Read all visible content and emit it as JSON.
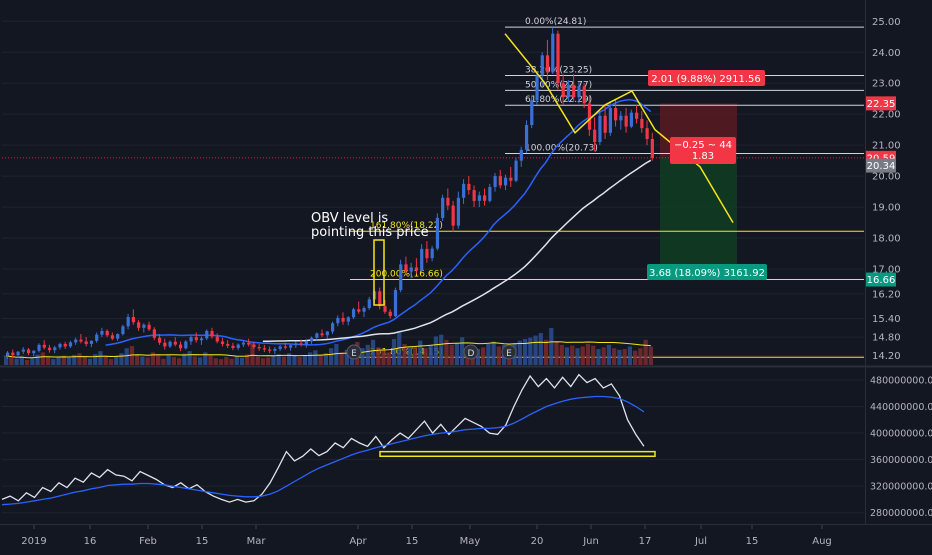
{
  "chart_data": [
    {
      "type": "candlestick",
      "panel": "price",
      "title": "",
      "xlabel": "",
      "ylabel": "",
      "y_ticks": [
        25.0,
        24.0,
        23.0,
        22.0,
        21.0,
        20.0,
        19.0,
        18.0,
        17.0,
        16.2,
        15.4,
        14.8,
        14.2
      ],
      "y_tick_labels": [
        "25.00",
        "24.00",
        "23.00",
        "22.00",
        "21.00",
        "20.00",
        "19.00",
        "18.00",
        "17.00",
        "16.20",
        "15.40",
        "14.80",
        "14.20"
      ],
      "ylim": [
        13.9,
        25.3
      ],
      "last_price": "20.34",
      "price_tags": [
        {
          "value": 22.35,
          "label": "22.35",
          "color": "#f23645"
        },
        {
          "value": 20.59,
          "label": "20.59",
          "color": "#f23645"
        },
        {
          "value": 20.34,
          "label": "20.34",
          "color": "#787b86"
        },
        {
          "value": 16.66,
          "label": "16.66",
          "color": "#089981"
        }
      ],
      "fib_levels": [
        {
          "label": "0.00%(24.81)",
          "value": 24.81
        },
        {
          "label": "38.20%(23.25)",
          "value": 23.25
        },
        {
          "label": "50.00%(22.77)",
          "value": 22.77
        },
        {
          "label": "61.80%(22.29)",
          "value": 22.29
        },
        {
          "label": "100.00%(20.73)",
          "value": 20.73
        },
        {
          "label": "161.80%(18.22)",
          "value": 18.22
        },
        {
          "label": "200.00%(16.66)",
          "value": 16.66
        },
        {
          "label": "261.80%(14.15)",
          "value": 14.15
        }
      ],
      "position": {
        "entry": 20.59,
        "stop": 22.35,
        "target": 16.66,
        "stop_label": "2.01 (9.88%) 2911.56",
        "target_label": "3.68 (18.09%) 3161.92",
        "center_label_1": "−0.25 ~ 44",
        "center_label_2": "1.83"
      },
      "annotation": "OBV level is pointing this price",
      "event_markers": [
        "E",
        "D",
        "E"
      ],
      "series": [
        {
          "name": "",
          "color": "#2962ff",
          "kind": "moving average"
        },
        {
          "name": "",
          "color": "#e0e3eb",
          "kind": "moving average"
        },
        {
          "name": "",
          "color": "#f5e51b",
          "kind": "volume moving average"
        }
      ],
      "candles": [
        [
          14.2,
          14.35,
          14.1,
          14.3
        ],
        [
          14.3,
          14.4,
          14.15,
          14.22
        ],
        [
          14.22,
          14.35,
          14.12,
          14.33
        ],
        [
          14.33,
          14.48,
          14.25,
          14.4
        ],
        [
          14.4,
          14.45,
          14.22,
          14.28
        ],
        [
          14.28,
          14.38,
          14.18,
          14.36
        ],
        [
          14.36,
          14.6,
          14.3,
          14.55
        ],
        [
          14.55,
          14.7,
          14.4,
          14.46
        ],
        [
          14.46,
          14.55,
          14.3,
          14.38
        ],
        [
          14.38,
          14.52,
          14.28,
          14.47
        ],
        [
          14.47,
          14.62,
          14.4,
          14.58
        ],
        [
          14.58,
          14.65,
          14.42,
          14.5
        ],
        [
          14.5,
          14.68,
          14.45,
          14.63
        ],
        [
          14.63,
          14.78,
          14.55,
          14.72
        ],
        [
          14.72,
          14.9,
          14.6,
          14.66
        ],
        [
          14.66,
          14.8,
          14.5,
          14.58
        ],
        [
          14.58,
          14.7,
          14.48,
          14.68
        ],
        [
          14.68,
          14.95,
          14.62,
          14.88
        ],
        [
          14.88,
          15.1,
          14.8,
          15.0
        ],
        [
          15.0,
          15.05,
          14.8,
          14.86
        ],
        [
          14.86,
          14.95,
          14.7,
          14.75
        ],
        [
          14.75,
          14.92,
          14.68,
          14.9
        ],
        [
          14.9,
          15.2,
          14.85,
          15.15
        ],
        [
          15.15,
          15.55,
          15.05,
          15.45
        ],
        [
          15.45,
          15.7,
          15.2,
          15.28
        ],
        [
          15.28,
          15.35,
          15.0,
          15.1
        ],
        [
          15.1,
          15.25,
          14.95,
          15.2
        ],
        [
          15.2,
          15.3,
          15.0,
          15.05
        ],
        [
          15.05,
          15.12,
          14.7,
          14.78
        ],
        [
          14.78,
          14.9,
          14.55,
          14.62
        ],
        [
          14.62,
          14.75,
          14.4,
          14.5
        ],
        [
          14.5,
          14.7,
          14.45,
          14.65
        ],
        [
          14.65,
          14.8,
          14.5,
          14.56
        ],
        [
          14.56,
          14.66,
          14.35,
          14.44
        ],
        [
          14.44,
          14.7,
          14.4,
          14.66
        ],
        [
          14.66,
          14.85,
          14.55,
          14.8
        ],
        [
          14.8,
          14.95,
          14.62,
          14.7
        ],
        [
          14.7,
          14.82,
          14.55,
          14.76
        ],
        [
          14.76,
          15.05,
          14.7,
          15.0
        ],
        [
          15.0,
          15.1,
          14.75,
          14.82
        ],
        [
          14.82,
          14.92,
          14.6,
          14.66
        ],
        [
          14.66,
          14.78,
          14.5,
          14.58
        ],
        [
          14.58,
          14.7,
          14.45,
          14.52
        ],
        [
          14.52,
          14.62,
          14.38,
          14.45
        ],
        [
          14.45,
          14.6,
          14.38,
          14.56
        ],
        [
          14.56,
          14.7,
          14.48,
          14.62
        ],
        [
          14.62,
          14.75,
          14.5,
          14.56
        ],
        [
          14.56,
          14.66,
          14.42,
          14.48
        ],
        [
          14.48,
          14.58,
          14.36,
          14.44
        ],
        [
          14.44,
          14.55,
          14.32,
          14.4
        ],
        [
          14.4,
          14.5,
          14.28,
          14.36
        ],
        [
          14.36,
          14.48,
          14.25,
          14.42
        ],
        [
          14.42,
          14.55,
          14.35,
          14.5
        ],
        [
          14.5,
          14.62,
          14.4,
          14.46
        ],
        [
          14.46,
          14.58,
          14.36,
          14.54
        ],
        [
          14.54,
          14.66,
          14.45,
          14.6
        ],
        [
          14.6,
          14.72,
          14.5,
          14.56
        ],
        [
          14.56,
          14.7,
          14.46,
          14.66
        ],
        [
          14.66,
          14.82,
          14.58,
          14.78
        ],
        [
          14.78,
          14.95,
          14.7,
          14.92
        ],
        [
          14.92,
          15.05,
          14.8,
          14.86
        ],
        [
          14.86,
          15.0,
          14.75,
          14.98
        ],
        [
          14.98,
          15.3,
          14.9,
          15.25
        ],
        [
          15.25,
          15.5,
          15.15,
          15.42
        ],
        [
          15.42,
          15.6,
          15.2,
          15.3
        ],
        [
          15.3,
          15.48,
          15.18,
          15.44
        ],
        [
          15.44,
          15.75,
          15.38,
          15.7
        ],
        [
          15.7,
          15.95,
          15.55,
          15.62
        ],
        [
          15.62,
          15.8,
          15.45,
          15.74
        ],
        [
          15.74,
          16.1,
          15.68,
          16.02
        ],
        [
          16.02,
          16.35,
          15.9,
          16.28
        ],
        [
          16.28,
          16.4,
          15.7,
          15.8
        ],
        [
          15.8,
          16.0,
          15.55,
          15.62
        ],
        [
          15.62,
          15.7,
          15.4,
          15.48
        ],
        [
          15.48,
          16.4,
          15.45,
          16.32
        ],
        [
          16.32,
          17.3,
          16.25,
          17.15
        ],
        [
          17.15,
          17.4,
          16.8,
          16.92
        ],
        [
          16.92,
          17.2,
          16.7,
          17.05
        ],
        [
          17.05,
          17.35,
          16.85,
          16.95
        ],
        [
          16.95,
          17.8,
          16.9,
          17.65
        ],
        [
          17.65,
          17.9,
          17.2,
          17.35
        ],
        [
          17.35,
          17.75,
          17.25,
          17.66
        ],
        [
          17.66,
          18.8,
          17.6,
          18.65
        ],
        [
          18.65,
          19.4,
          18.55,
          19.3
        ],
        [
          19.3,
          19.6,
          18.9,
          19.05
        ],
        [
          19.05,
          19.2,
          18.2,
          18.4
        ],
        [
          18.4,
          19.5,
          18.3,
          19.3
        ],
        [
          19.3,
          19.9,
          19.1,
          19.75
        ],
        [
          19.75,
          20.0,
          19.4,
          19.55
        ],
        [
          19.55,
          19.7,
          19.0,
          19.2
        ],
        [
          19.2,
          19.5,
          19.0,
          19.38
        ],
        [
          19.38,
          19.6,
          19.05,
          19.2
        ],
        [
          19.2,
          19.75,
          19.15,
          19.65
        ],
        [
          19.65,
          20.1,
          19.5,
          20.0
        ],
        [
          20.0,
          20.2,
          19.6,
          19.7
        ],
        [
          19.7,
          20.05,
          19.55,
          19.95
        ],
        [
          19.95,
          20.3,
          19.65,
          19.85
        ],
        [
          19.85,
          20.6,
          19.8,
          20.5
        ],
        [
          20.5,
          20.95,
          20.3,
          20.85
        ],
        [
          20.85,
          21.8,
          20.75,
          21.65
        ],
        [
          21.65,
          22.6,
          21.55,
          22.45
        ],
        [
          22.45,
          23.4,
          22.3,
          23.25
        ],
        [
          23.25,
          24.0,
          22.9,
          23.9
        ],
        [
          23.9,
          24.4,
          23.1,
          23.35
        ],
        [
          23.35,
          24.81,
          23.3,
          24.6
        ],
        [
          24.6,
          24.7,
          22.8,
          23.0
        ],
        [
          23.0,
          23.3,
          22.3,
          22.55
        ],
        [
          22.55,
          23.1,
          22.4,
          22.95
        ],
        [
          22.95,
          23.3,
          22.4,
          22.55
        ],
        [
          22.55,
          23.05,
          22.35,
          22.9
        ],
        [
          22.9,
          23.0,
          22.2,
          22.35
        ],
        [
          22.35,
          22.6,
          21.3,
          21.5
        ],
        [
          21.5,
          21.9,
          20.8,
          21.1
        ],
        [
          21.1,
          22.1,
          21.0,
          21.95
        ],
        [
          21.95,
          22.3,
          21.2,
          21.4
        ],
        [
          21.4,
          22.4,
          21.3,
          22.2
        ],
        [
          22.2,
          22.5,
          21.6,
          21.8
        ],
        [
          21.8,
          22.1,
          21.5,
          21.95
        ],
        [
          21.95,
          22.2,
          21.4,
          21.6
        ],
        [
          21.6,
          22.15,
          21.55,
          22.05
        ],
        [
          22.05,
          22.3,
          21.7,
          21.85
        ],
        [
          21.85,
          22.1,
          21.4,
          21.55
        ],
        [
          21.55,
          21.8,
          21.0,
          21.2
        ],
        [
          21.2,
          21.4,
          20.5,
          20.59
        ]
      ]
    },
    {
      "type": "bar",
      "panel": "volume",
      "title": "",
      "xlabel": "",
      "ylabel": "",
      "values": [
        22,
        18,
        15,
        20,
        12,
        16,
        25,
        30,
        18,
        14,
        20,
        22,
        17,
        24,
        28,
        19,
        15,
        26,
        33,
        20,
        14,
        22,
        28,
        40,
        45,
        25,
        20,
        18,
        30,
        22,
        15,
        24,
        19,
        16,
        27,
        33,
        20,
        18,
        30,
        24,
        16,
        14,
        19,
        15,
        21,
        17,
        25,
        55,
        20,
        16,
        18,
        22,
        26,
        20,
        28,
        24,
        19,
        22,
        30,
        35,
        25,
        28,
        40,
        50,
        30,
        36,
        45,
        55,
        40,
        48,
        60,
        42,
        38,
        30,
        62,
        80,
        50,
        42,
        45,
        58,
        40,
        46,
        68,
        72,
        60,
        48,
        52,
        66,
        44,
        40,
        38,
        42,
        50,
        56,
        44,
        48,
        40,
        52,
        58,
        62,
        65,
        70,
        76,
        60,
        88,
        55,
        48,
        42,
        46,
        40,
        44,
        50,
        46,
        38,
        42,
        48,
        40,
        36,
        38,
        44,
        34,
        40,
        60,
        44
      ],
      "ylim": [
        0,
        100
      ]
    },
    {
      "type": "line",
      "panel": "obv",
      "title": "",
      "xlabel": "",
      "ylabel": "",
      "y_ticks": [
        480000000,
        440000000,
        400000000,
        360000000,
        320000000,
        280000000
      ],
      "y_tick_labels": [
        "480000000.0000",
        "440000000.0000",
        "400000000.0000",
        "360000000.0000",
        "320000000.0000",
        "280000000.0000"
      ],
      "ylim": [
        266000000,
        498000000
      ],
      "support_zone": [
        365000000,
        372000000
      ],
      "series": [
        {
          "name": "",
          "color": "#e0e3eb",
          "values": [
            300000000,
            305000000,
            298000000,
            310000000,
            303000000,
            318000000,
            312000000,
            325000000,
            318000000,
            332000000,
            326000000,
            340000000,
            333000000,
            345000000,
            337000000,
            335000000,
            328000000,
            342000000,
            336000000,
            330000000,
            322000000,
            318000000,
            325000000,
            316000000,
            322000000,
            312000000,
            305000000,
            300000000,
            296000000,
            300000000,
            296000000,
            298000000,
            308000000,
            325000000,
            348000000,
            372000000,
            358000000,
            365000000,
            376000000,
            366000000,
            372000000,
            385000000,
            378000000,
            392000000,
            385000000,
            380000000,
            395000000,
            378000000,
            390000000,
            400000000,
            392000000,
            405000000,
            418000000,
            400000000,
            413000000,
            398000000,
            410000000,
            422000000,
            416000000,
            410000000,
            400000000,
            398000000,
            412000000,
            440000000,
            465000000,
            486000000,
            470000000,
            482000000,
            468000000,
            484000000,
            470000000,
            488000000,
            476000000,
            482000000,
            468000000,
            474000000,
            456000000,
            420000000,
            398000000,
            380000000
          ]
        },
        {
          "name": "",
          "color": "#2962ff",
          "values": [
            292000000,
            293000000,
            294000000,
            296000000,
            298000000,
            300000000,
            302000000,
            305000000,
            308000000,
            311000000,
            313000000,
            316000000,
            318000000,
            321000000,
            322000000,
            323000000,
            323000000,
            324000000,
            324000000,
            323000000,
            322000000,
            320000000,
            318000000,
            316000000,
            314000000,
            312000000,
            310000000,
            308000000,
            306000000,
            305000000,
            304000000,
            304000000,
            305000000,
            308000000,
            313000000,
            320000000,
            327000000,
            334000000,
            341000000,
            347000000,
            352000000,
            357000000,
            362000000,
            367000000,
            371000000,
            374000000,
            378000000,
            381000000,
            384000000,
            387000000,
            390000000,
            393000000,
            396000000,
            398000000,
            400000000,
            401000000,
            403000000,
            405000000,
            406000000,
            407000000,
            407000000,
            408000000,
            410000000,
            415000000,
            421000000,
            428000000,
            434000000,
            440000000,
            444000000,
            448000000,
            451000000,
            453000000,
            454000000,
            455000000,
            455000000,
            454000000,
            452000000,
            447000000,
            440000000,
            432000000
          ]
        }
      ]
    }
  ],
  "x_axis": {
    "tick_labels": [
      "2019",
      "16",
      "Feb",
      "15",
      "Mar",
      "Apr",
      "15",
      "May",
      "20",
      "Jun",
      "17",
      "Jul",
      "15",
      "Aug"
    ]
  },
  "colors": {
    "background": "#131722",
    "grid": "#1f2330",
    "up": "#3b6fd6",
    "down": "#f23645",
    "fib": "#f5e51b",
    "stop_zone": "#5b1a22",
    "target_zone": "#0f3b22",
    "text": "#b2b5be"
  }
}
